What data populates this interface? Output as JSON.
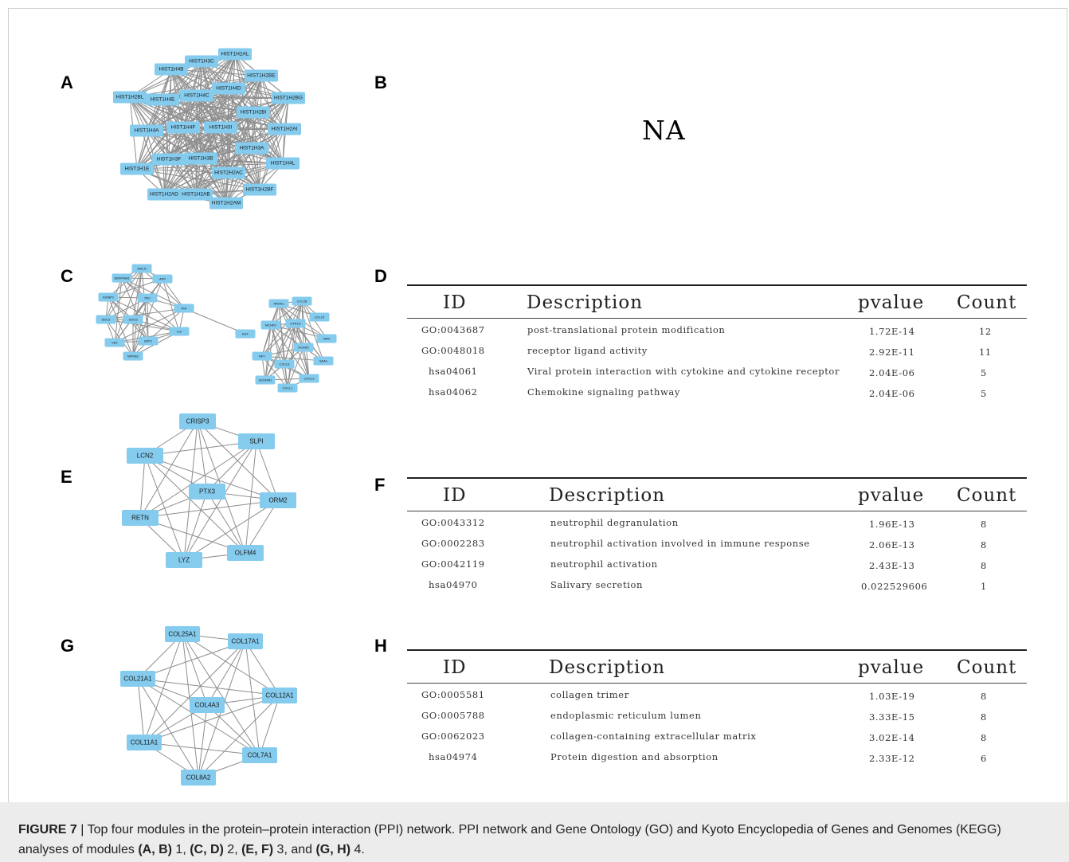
{
  "panels": {
    "A": "A",
    "B": "B",
    "C": "C",
    "D": "D",
    "E": "E",
    "F": "F",
    "G": "G",
    "H": "H"
  },
  "panel_b_text": "NA",
  "network_a": {
    "nodes": [
      "HIST1H2AL",
      "HIST1H3C",
      "HIST1H4B",
      "HIST1H2BE",
      "HIST1H4D",
      "HIST1H2BL",
      "HIST1H4E",
      "HIST1H4C",
      "HIST1H2BG",
      "HIST1H2BI",
      "HIST1H4A",
      "HIST1H4F",
      "HIST1H3I",
      "HIST1H2AI",
      "HIST1H3A",
      "HIST1H3F",
      "HIST1H3B",
      "HIST1H4L",
      "HIST1H1E",
      "HIST2H2AC",
      "HIST1H2BF",
      "HIST1H2AD",
      "HIST1H2AB",
      "HIST1H2AM"
    ]
  },
  "network_c": {
    "nodes": [
      "MSLN",
      "SERPINA1",
      "APP",
      "IGFBP1",
      "TNC",
      "PHI",
      "SDC2",
      "SOG3",
      "IL8",
      "VEF",
      "SPP1",
      "BPIFB2",
      "AGT",
      "ANXA1",
      "CCL28",
      "CCL15",
      "MCHR1",
      "HTR1D",
      "NPR",
      "NPY",
      "HCAR2",
      "SAA1",
      "CXCL6",
      "CXCL3",
      "SDORM1",
      "CXCL1"
    ]
  },
  "network_e": {
    "nodes": [
      "CRISP3",
      "SLPI",
      "LCN2",
      "PTX3",
      "ORM2",
      "RETN",
      "OLFM4",
      "LYZ"
    ]
  },
  "network_g": {
    "nodes": [
      "COL25A1",
      "COL17A1",
      "COL21A1",
      "COL12A1",
      "COL4A3",
      "COL11A1",
      "COL7A1",
      "COL8A2"
    ]
  },
  "table_d": {
    "headers": [
      "ID",
      "Description",
      "pvalue",
      "Count"
    ],
    "rows": [
      [
        "GO:0043687",
        "post-translational protein modification",
        "1.72E-14",
        "12"
      ],
      [
        "GO:0048018",
        "receptor ligand activity",
        "2.92E-11",
        "11"
      ],
      [
        "hsa04061",
        "Viral protein interaction with cytokine and cytokine receptor",
        "2.04E-06",
        "5"
      ],
      [
        "hsa04062",
        "Chemokine signaling pathway",
        "2.04E-06",
        "5"
      ]
    ]
  },
  "table_f": {
    "headers": [
      "ID",
      "Description",
      "pvalue",
      "Count"
    ],
    "rows": [
      [
        "GO:0043312",
        "neutrophil degranulation",
        "1.96E-13",
        "8"
      ],
      [
        "GO:0002283",
        "neutrophil activation involved in immune response",
        "2.06E-13",
        "8"
      ],
      [
        "GO:0042119",
        "neutrophil activation",
        "2.43E-13",
        "8"
      ],
      [
        "hsa04970",
        "Salivary secretion",
        "0.022529606",
        "1"
      ]
    ]
  },
  "table_h": {
    "headers": [
      "ID",
      "Description",
      "pvalue",
      "Count"
    ],
    "rows": [
      [
        "GO:0005581",
        "collagen trimer",
        "1.03E-19",
        "8"
      ],
      [
        "GO:0005788",
        "endoplasmic reticulum lumen",
        "3.33E-15",
        "8"
      ],
      [
        "GO:0062023",
        "collagen-containing extracellular matrix",
        "3.02E-14",
        "8"
      ],
      [
        "hsa04974",
        "Protein digestion and absorption",
        "2.33E-12",
        "6"
      ]
    ]
  },
  "caption": {
    "label": "FIGURE 7",
    "sep": " | ",
    "text_1": "Top four modules in the protein–protein interaction (PPI) network. PPI network and Gene Ontology (GO) and Kyoto Encyclopedia of Genes and Genomes (KEGG) analyses of modules ",
    "ref_1": "(A, B)",
    "num_1": " 1, ",
    "ref_2": "(C, D)",
    "num_2": " 2, ",
    "ref_3": "(E, F)",
    "num_3": " 3, and ",
    "ref_4": "(G, H)",
    "num_4": " 4."
  },
  "colors": {
    "node": "#84cbee",
    "edge": "#8e8e8e",
    "caption_bg": "#ececec"
  }
}
